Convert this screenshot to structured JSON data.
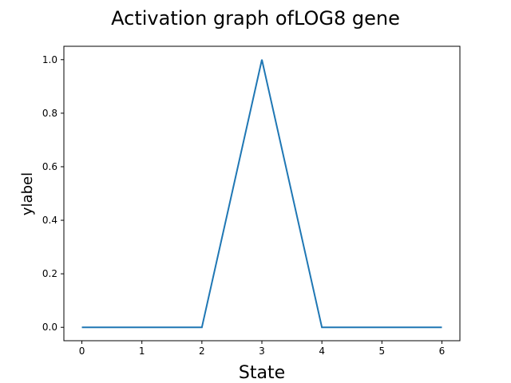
{
  "chart_data": {
    "type": "line",
    "title": "Activation graph ofLOG8 gene",
    "xlabel": "State",
    "ylabel": "ylabel",
    "x": [
      0,
      1,
      2,
      3,
      4,
      5,
      6
    ],
    "series": [
      {
        "values": [
          0,
          0,
          0,
          1,
          0,
          0,
          0
        ],
        "color": "#1f77b4"
      }
    ],
    "xlim": [
      -0.3,
      6.3
    ],
    "ylim": [
      -0.05,
      1.05
    ],
    "xticks": [
      0,
      1,
      2,
      3,
      4,
      5,
      6
    ],
    "xtick_labels": [
      "0",
      "1",
      "2",
      "3",
      "4",
      "5",
      "6"
    ],
    "yticks": [
      0.0,
      0.2,
      0.4,
      0.6,
      0.8,
      1.0
    ],
    "ytick_labels": [
      "0.0",
      "0.2",
      "0.4",
      "0.6",
      "0.8",
      "1.0"
    ],
    "grid": false,
    "legend": "none"
  }
}
